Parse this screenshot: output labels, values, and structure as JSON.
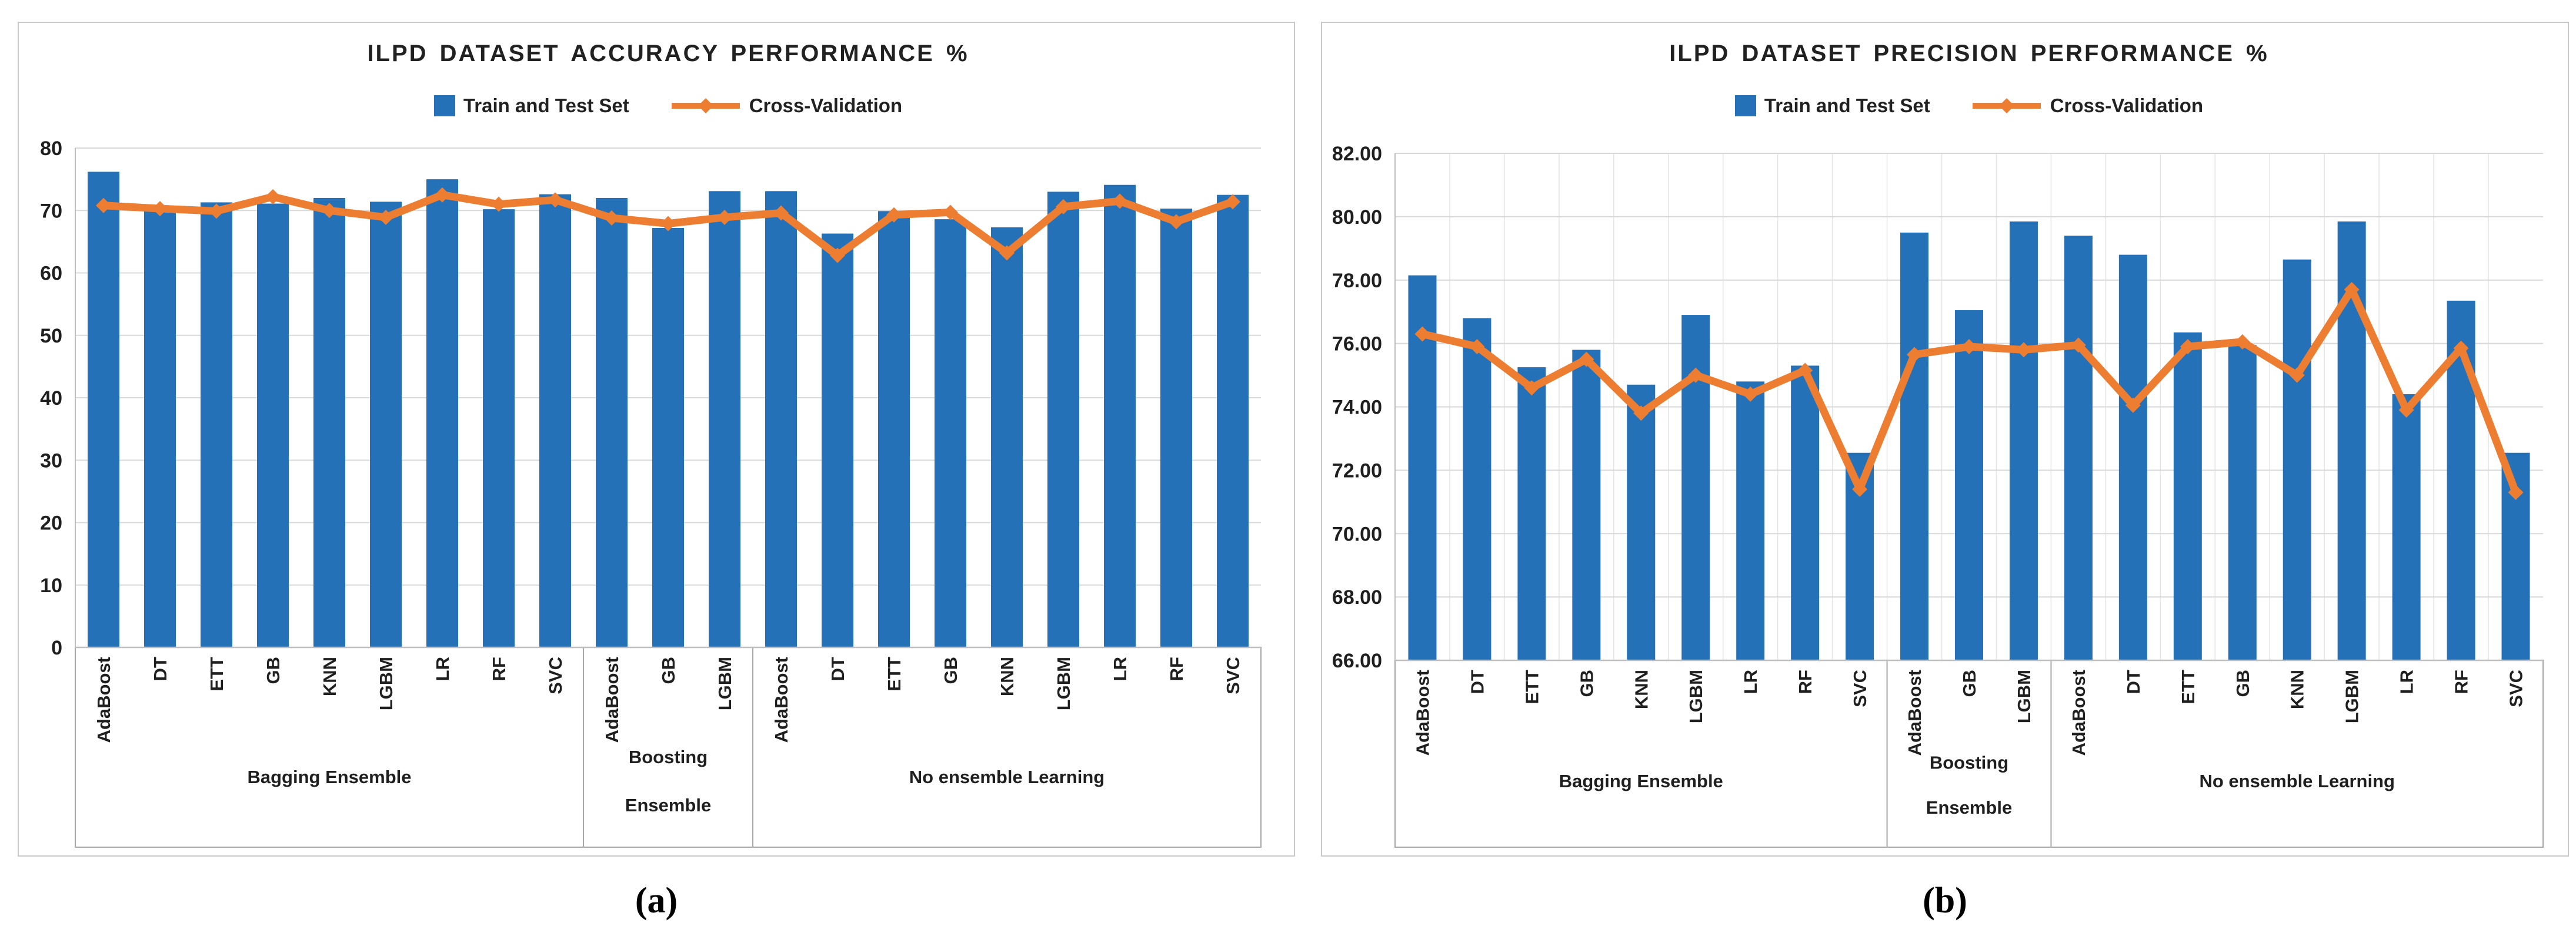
{
  "page": {
    "captions": [
      {
        "label": "(a)"
      },
      {
        "label": "(b)"
      }
    ]
  },
  "colors": {
    "bar": "#2571B8",
    "line": "#ED7D31",
    "grid": "#D9D9D9",
    "axis": "#BFBFBF",
    "group_box": "#A6A6A6",
    "text": "#1F1F1F"
  },
  "chart_data": [
    {
      "type": "bar",
      "title": "ILPD DATASET ACCURACY PERFORMANCE %",
      "legend_position": "top",
      "grid": "horizontal",
      "xlabel": "",
      "ylabel": "",
      "y_axis": {
        "min": 0,
        "max": 80,
        "step": 10,
        "tick_labels": [
          "0",
          "10",
          "20",
          "30",
          "40",
          "50",
          "60",
          "70",
          "80"
        ]
      },
      "categories": [
        "AdaBoost",
        "DT",
        "ETT",
        "GB",
        "KNN",
        "LGBM",
        "LR",
        "RF",
        "SVC",
        "AdaBoost",
        "GB",
        "LGBM",
        "AdaBoost",
        "DT",
        "ETT",
        "GB",
        "KNN",
        "LGBM",
        "LR",
        "RF",
        "SVC"
      ],
      "groups": [
        {
          "label_lines": [
            "Bagging Ensemble"
          ],
          "span": 9
        },
        {
          "label_lines": [
            "Boosting",
            "Ensemble"
          ],
          "span": 3
        },
        {
          "label_lines": [
            "No ensemble Learning"
          ],
          "span": 9
        }
      ],
      "series": [
        {
          "name": "Train and Test Set",
          "type": "bar",
          "values": [
            76.2,
            69.9,
            71.3,
            71.1,
            72.0,
            71.4,
            75.0,
            70.2,
            72.6,
            72.0,
            67.2,
            73.1,
            73.1,
            66.3,
            69.9,
            68.6,
            67.3,
            73.0,
            74.1,
            70.3,
            72.5
          ]
        },
        {
          "name": "Cross-Validation",
          "type": "line",
          "values": [
            70.8,
            70.3,
            69.9,
            72.2,
            70.0,
            68.9,
            72.5,
            71.0,
            71.7,
            68.8,
            67.9,
            68.9,
            69.6,
            62.8,
            69.3,
            69.7,
            63.2,
            70.6,
            71.5,
            68.2,
            71.4
          ]
        }
      ]
    },
    {
      "type": "bar",
      "title": "ILPD DATASET PRECISION PERFORMANCE %",
      "legend_position": "top",
      "grid": "horizontal+vertical",
      "xlabel": "",
      "ylabel": "",
      "y_axis": {
        "min": 66,
        "max": 82,
        "step": 2,
        "tick_labels": [
          "66.00",
          "68.00",
          "70.00",
          "72.00",
          "74.00",
          "76.00",
          "78.00",
          "80.00",
          "82.00"
        ]
      },
      "categories": [
        "AdaBoost",
        "DT",
        "ETT",
        "GB",
        "KNN",
        "LGBM",
        "LR",
        "RF",
        "SVC",
        "AdaBoost",
        "GB",
        "LGBM",
        "AdaBoost",
        "DT",
        "ETT",
        "GB",
        "KNN",
        "LGBM",
        "LR",
        "RF",
        "SVC"
      ],
      "groups": [
        {
          "label_lines": [
            "Bagging Ensemble"
          ],
          "span": 9
        },
        {
          "label_lines": [
            "Boosting",
            "Ensemble"
          ],
          "span": 3
        },
        {
          "label_lines": [
            "No ensemble Learning"
          ],
          "span": 9
        }
      ],
      "series": [
        {
          "name": "Train and Test Set",
          "type": "bar",
          "values": [
            78.15,
            76.8,
            75.25,
            75.8,
            74.7,
            76.9,
            74.8,
            75.3,
            72.55,
            79.5,
            77.05,
            79.85,
            79.4,
            78.8,
            76.35,
            75.95,
            78.65,
            79.85,
            74.4,
            77.35,
            72.55
          ]
        },
        {
          "name": "Cross-Validation",
          "type": "line",
          "values": [
            76.3,
            75.9,
            74.6,
            75.5,
            73.8,
            75.0,
            74.4,
            75.15,
            71.4,
            75.65,
            75.9,
            75.8,
            75.95,
            74.05,
            75.9,
            76.05,
            75.0,
            77.7,
            73.9,
            75.85,
            71.3
          ]
        }
      ]
    }
  ]
}
